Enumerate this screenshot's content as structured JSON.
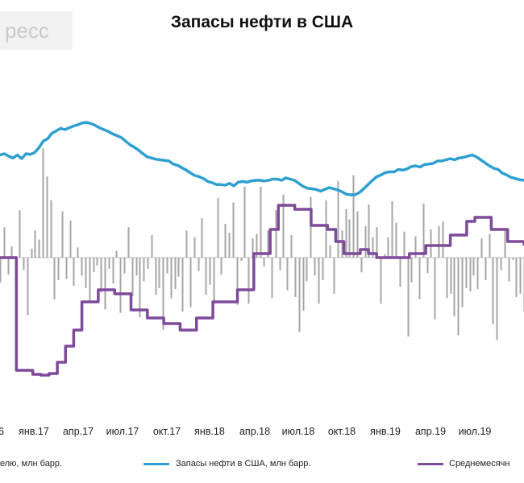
{
  "header": {
    "watermark": "ресс",
    "title": "Запасы нефти в США"
  },
  "colors": {
    "bars": "#a6a6a6",
    "stocks": "#2e9fd0",
    "average": "#7d4a9c"
  },
  "legend": {
    "bars_label": "елю, млн  барр.",
    "stocks_label": "Запасы нефти  в США, млн  барр.",
    "average_label": "Среднемесячн"
  },
  "chart_data": {
    "type": "line",
    "title": "Запасы нефти в США",
    "x_ticks": [
      "6",
      "янв.17",
      "апр.17",
      "июл.17",
      "окт.17",
      "янв.18",
      "апр.18",
      "июл.18",
      "окт.18",
      "янв.19",
      "апр.19",
      "июл.19"
    ],
    "x_range": [
      "2016-10",
      "2019-09"
    ],
    "grid": false,
    "legend_position": "bottom",
    "series": [
      {
        "name": "Запасы нефти  в США, млн  барр.",
        "kind": "line",
        "color": "#2e9fd0",
        "values": [
          470,
          472,
          468,
          465,
          470,
          464,
          472,
          471,
          474,
          482,
          493,
          497,
          506,
          510,
          514,
          512,
          515,
          518,
          520,
          523,
          524,
          522,
          519,
          515,
          512,
          509,
          505,
          502,
          499,
          493,
          487,
          483,
          478,
          472,
          467,
          465,
          463,
          462,
          461,
          460,
          455,
          453,
          449,
          445,
          440,
          436,
          434,
          431,
          426,
          424,
          421,
          421,
          420,
          423,
          419,
          425,
          426,
          425,
          427,
          428,
          428,
          427,
          428,
          430,
          430,
          428,
          432,
          430,
          428,
          423,
          418,
          415,
          414,
          413,
          410,
          413,
          416,
          414,
          412,
          409,
          405,
          404,
          404,
          408,
          414,
          421,
          428,
          434,
          437,
          441,
          442,
          442,
          446,
          445,
          447,
          451,
          452,
          450,
          454,
          455,
          456,
          460,
          460,
          462,
          464,
          462,
          465,
          466,
          468,
          470,
          467,
          462,
          457,
          452,
          448,
          446,
          440,
          437,
          433,
          431,
          429,
          428
        ]
      },
      {
        "name": "Среднемесячн",
        "kind": "step",
        "color": "#7d4a9c",
        "values": [
          0,
          0,
          -140,
          -140,
          -145,
          -146,
          -144,
          -130,
          -110,
          -90,
          -55,
          -55,
          -40,
          -40,
          -45,
          -45,
          -65,
          -65,
          -75,
          -75,
          -82,
          -82,
          -90,
          -90,
          -75,
          -75,
          -55,
          -55,
          -55,
          -40,
          -40,
          5,
          5,
          35,
          65,
          65,
          60,
          60,
          40,
          40,
          35,
          20,
          5,
          5,
          10,
          5,
          0,
          0,
          0,
          0,
          5,
          5,
          15,
          15,
          15,
          28,
          28,
          45,
          50,
          50,
          35,
          35,
          20,
          20,
          15
        ]
      },
      {
        "name": "елю, млн  барр.",
        "kind": "bar",
        "color": "#a6a6a6",
        "values": [
          -2.2,
          2.7,
          -1.5,
          1.0,
          -2.9,
          4.2,
          -1.1,
          -5.1,
          0.8,
          2.4,
          1.6,
          9.7,
          7.2,
          5.1,
          -3.7,
          -2.0,
          4.1,
          -1.9,
          3.3,
          -2.5,
          0.9,
          -1.6,
          -2.7,
          -3.9,
          -1.3,
          -0.7,
          -3.1,
          -4.6,
          -1.0,
          -2.3,
          0.6,
          -4.9,
          -1.4,
          2.7,
          -3.4,
          -1.6,
          -5.3,
          -2.1,
          -1.0,
          2.0,
          -3.3,
          -2.7,
          -6.4,
          -1.4,
          -3.6,
          -2.8,
          -1.7,
          -4.8,
          2.4,
          -4.4,
          1.8,
          -1.2,
          3.5,
          -3.3,
          -2.4,
          -4.1,
          5.3,
          -1.5,
          3.0,
          2.2,
          4.9,
          -4.2,
          -0.3,
          6.3,
          -4.1,
          1.7,
          2.1,
          6.3,
          -0.8,
          2.4,
          -3.6,
          4.2,
          -1.1,
          5.6,
          -2.9,
          2.0,
          -3.5,
          -6.6,
          -4.7,
          -2.1,
          5.4,
          -1.6,
          -4.1,
          -2.0,
          5.1,
          1.1,
          -3.2,
          6.8,
          2.4,
          4.3,
          3.4,
          7.3,
          4.1,
          -1.3,
          2.8,
          4.7,
          1.8,
          2.7,
          -4.1,
          0.3,
          1.8,
          5.0,
          3.1,
          -2.6,
          2.3,
          -7.0,
          -2.2,
          1.9,
          -3.7,
          4.8,
          -1.4,
          2.5,
          -5.5,
          2.8,
          3.2,
          -3.6,
          -3.2,
          -5.2,
          -6.9,
          -4.4,
          -2.7,
          -3.0,
          -1.6,
          -2.8,
          1.7,
          -2.0,
          2.1,
          -5.9,
          -7.3,
          -1.1,
          2.4,
          -2.1,
          -0.2,
          -3.5,
          -3.2,
          -4.8
        ]
      }
    ]
  }
}
